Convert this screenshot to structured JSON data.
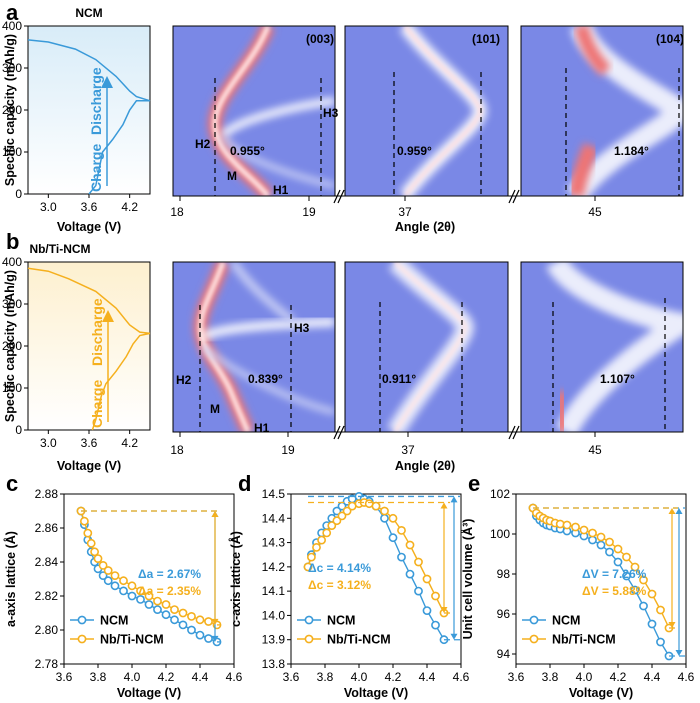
{
  "colors": {
    "ncm": "#3a9ad9",
    "nbti": "#f5b01e",
    "heat_bg": "#7a88e6",
    "heat_ridge": "#ffffff",
    "heat_hot": "#ee7474"
  },
  "panel_labels": [
    "a",
    "b",
    "c",
    "d",
    "e"
  ],
  "rows": [
    {
      "material": "NCM",
      "voltage_profile": {
        "ylabel": "Specific capacity (mAh/g)",
        "xlabel": "Voltage (V)",
        "yticks": [
          "0",
          "100",
          "200",
          "300",
          "400"
        ],
        "xticks": [
          "3.0",
          "3.6",
          "4.2"
        ],
        "charge_label": "Charge",
        "discharge_label": "Discharge",
        "color": "#3a9ad9"
      },
      "heatmap_xlabel": "Angle (2θ)",
      "heatmap_xticks": [
        "18",
        "19",
        "37",
        "45"
      ],
      "heatmaps": [
        {
          "reflection": "(003)",
          "shift": "0.955°",
          "phases": [
            "H1",
            "M",
            "H2",
            "H3"
          ]
        },
        {
          "reflection": "(101)",
          "shift": "0.959°"
        },
        {
          "reflection": "(104)",
          "shift": "1.184°"
        }
      ]
    },
    {
      "material": "Nb/Ti-NCM",
      "voltage_profile": {
        "ylabel": "Specific capacity (mAh/g)",
        "xlabel": "Voltage (V)",
        "yticks": [
          "0",
          "100",
          "200",
          "300",
          "400"
        ],
        "xticks": [
          "3.0",
          "3.6",
          "4.2"
        ],
        "charge_label": "Charge",
        "discharge_label": "Discharge",
        "color": "#f5b01e"
      },
      "heatmap_xlabel": "Angle (2θ)",
      "heatmap_xticks": [
        "18",
        "19",
        "37",
        "45"
      ],
      "heatmaps": [
        {
          "reflection": "",
          "shift": "0.839°",
          "phases": [
            "H1",
            "M",
            "H2",
            "H3"
          ]
        },
        {
          "reflection": "",
          "shift": "0.911°"
        },
        {
          "reflection": "",
          "shift": "1.107°"
        }
      ]
    }
  ],
  "chart_data": [
    {
      "type": "line",
      "panel": "a",
      "title": "NCM",
      "xlabel": "Voltage (V)",
      "ylabel": "Specific capacity (mAh/g)",
      "xlim": [
        2.7,
        4.5
      ],
      "ylim": [
        0,
        400
      ],
      "series": [
        {
          "values": [
            [
              3.6,
              0
            ],
            [
              3.7,
              20
            ],
            [
              3.75,
              60
            ],
            [
              3.8,
              100
            ],
            [
              3.95,
              130
            ],
            [
              4.1,
              165
            ],
            [
              4.2,
              200
            ],
            [
              4.3,
              222
            ],
            [
              4.5,
              222
            ]
          ]
        },
        {
          "values": [
            [
              4.5,
              222
            ],
            [
              4.3,
              232
            ],
            [
              4.2,
              245
            ],
            [
              4.0,
              280
            ],
            [
              3.7,
              320
            ],
            [
              3.4,
              345
            ],
            [
              3.0,
              362
            ],
            [
              2.7,
              367
            ]
          ]
        }
      ]
    },
    {
      "type": "line",
      "panel": "b",
      "title": "Nb/Ti-NCM",
      "xlabel": "Voltage (V)",
      "ylabel": "Specific capacity (mAh/g)",
      "xlim": [
        2.7,
        4.5
      ],
      "ylim": [
        0,
        400
      ],
      "series": [
        {
          "values": [
            [
              3.65,
              0
            ],
            [
              3.7,
              25
            ],
            [
              3.78,
              80
            ],
            [
              3.85,
              110
            ],
            [
              4.0,
              140
            ],
            [
              4.15,
              175
            ],
            [
              4.25,
              205
            ],
            [
              4.35,
              225
            ],
            [
              4.5,
              230
            ]
          ]
        },
        {
          "values": [
            [
              4.5,
              230
            ],
            [
              4.35,
              233
            ],
            [
              4.2,
              250
            ],
            [
              4.0,
              290
            ],
            [
              3.7,
              330
            ],
            [
              3.3,
              360
            ],
            [
              3.0,
              378
            ],
            [
              2.7,
              385
            ]
          ]
        }
      ]
    },
    {
      "type": "line",
      "panel": "c",
      "xlabel": "Voltage (V)",
      "ylabel": "a-axis lattice (Å)",
      "xlim": [
        3.6,
        4.6
      ],
      "ylim": [
        2.78,
        2.88
      ],
      "xticks": [
        "3.6",
        "3.8",
        "4.0",
        "4.2",
        "4.4",
        "4.6"
      ],
      "yticks": [
        "2.78",
        "2.80",
        "2.82",
        "2.84",
        "2.86",
        "2.88"
      ],
      "annotations": [
        "Δa = 2.67%",
        "Δa = 2.35%"
      ],
      "legend": "bottom-left",
      "series": [
        {
          "name": "NCM",
          "x": [
            3.7,
            3.72,
            3.74,
            3.76,
            3.78,
            3.8,
            3.83,
            3.86,
            3.9,
            3.95,
            4.0,
            4.05,
            4.1,
            4.15,
            4.2,
            4.25,
            4.3,
            4.35,
            4.4,
            4.45,
            4.5
          ],
          "values": [
            2.87,
            2.862,
            2.853,
            2.846,
            2.84,
            2.836,
            2.832,
            2.829,
            2.826,
            2.823,
            2.82,
            2.818,
            2.815,
            2.812,
            2.809,
            2.806,
            2.803,
            2.8,
            2.797,
            2.795,
            2.793
          ]
        },
        {
          "name": "Nb/Ti-NCM",
          "x": [
            3.7,
            3.72,
            3.74,
            3.76,
            3.78,
            3.8,
            3.83,
            3.86,
            3.9,
            3.95,
            4.0,
            4.05,
            4.1,
            4.15,
            4.2,
            4.25,
            4.3,
            4.35,
            4.4,
            4.45,
            4.5
          ],
          "values": [
            2.87,
            2.864,
            2.857,
            2.851,
            2.846,
            2.842,
            2.838,
            2.835,
            2.832,
            2.829,
            2.826,
            2.823,
            2.82,
            2.817,
            2.815,
            2.812,
            2.81,
            2.808,
            2.806,
            2.805,
            2.803
          ]
        }
      ]
    },
    {
      "type": "line",
      "panel": "d",
      "xlabel": "Voltage (V)",
      "ylabel": "c-axis lattice (Å)",
      "xlim": [
        3.6,
        4.6
      ],
      "ylim": [
        13.8,
        14.5
      ],
      "xticks": [
        "3.6",
        "3.8",
        "4.0",
        "4.2",
        "4.4",
        "4.6"
      ],
      "yticks": [
        "13.8",
        "13.9",
        "14.0",
        "14.1",
        "14.2",
        "14.3",
        "14.4",
        "14.5"
      ],
      "annotations": [
        "Δc = 4.14%",
        "Δc = 3.12%"
      ],
      "legend": "bottom-left",
      "series": [
        {
          "name": "NCM",
          "x": [
            3.7,
            3.72,
            3.75,
            3.78,
            3.81,
            3.84,
            3.87,
            3.9,
            3.93,
            3.96,
            4.0,
            4.03,
            4.06,
            4.1,
            4.15,
            4.2,
            4.25,
            4.3,
            4.35,
            4.4,
            4.45,
            4.5
          ],
          "values": [
            14.2,
            14.25,
            14.3,
            14.34,
            14.37,
            14.4,
            14.43,
            14.45,
            14.47,
            14.48,
            14.49,
            14.48,
            14.47,
            14.45,
            14.4,
            14.32,
            14.24,
            14.17,
            14.1,
            14.02,
            13.96,
            13.9
          ]
        },
        {
          "name": "Nb/Ti-NCM",
          "x": [
            3.7,
            3.72,
            3.75,
            3.78,
            3.81,
            3.84,
            3.87,
            3.9,
            3.93,
            3.96,
            4.0,
            4.03,
            4.06,
            4.1,
            4.15,
            4.2,
            4.25,
            4.3,
            4.35,
            4.4,
            4.45,
            4.5
          ],
          "values": [
            14.2,
            14.24,
            14.28,
            14.31,
            14.34,
            14.37,
            14.39,
            14.41,
            14.43,
            14.45,
            14.46,
            14.465,
            14.46,
            14.45,
            14.43,
            14.4,
            14.35,
            14.29,
            14.22,
            14.15,
            14.08,
            14.01
          ]
        }
      ]
    },
    {
      "type": "line",
      "panel": "e",
      "xlabel": "Voltage (V)",
      "ylabel": "Unit cell volume (Å³)",
      "xlim": [
        3.6,
        4.6
      ],
      "ylim": [
        93.5,
        102
      ],
      "xticks": [
        "3.6",
        "3.8",
        "4.0",
        "4.2",
        "4.4",
        "4.6"
      ],
      "yticks": [
        "94",
        "96",
        "98",
        "100",
        "102"
      ],
      "annotations": [
        "ΔV = 7.26%",
        "ΔV = 5.88%"
      ],
      "legend": "bottom-left",
      "series": [
        {
          "name": "NCM",
          "x": [
            3.7,
            3.72,
            3.74,
            3.76,
            3.78,
            3.8,
            3.83,
            3.86,
            3.9,
            3.95,
            4.0,
            4.05,
            4.1,
            4.15,
            4.2,
            4.25,
            4.3,
            4.35,
            4.4,
            4.45,
            4.5
          ],
          "values": [
            101.3,
            100.9,
            100.7,
            100.55,
            100.45,
            100.4,
            100.3,
            100.25,
            100.15,
            100.05,
            99.9,
            99.7,
            99.45,
            99.1,
            98.6,
            97.9,
            97.2,
            96.4,
            95.5,
            94.6,
            93.9
          ]
        },
        {
          "name": "Nb/Ti-NCM",
          "x": [
            3.7,
            3.72,
            3.74,
            3.76,
            3.78,
            3.8,
            3.83,
            3.86,
            3.9,
            3.95,
            4.0,
            4.05,
            4.1,
            4.15,
            4.2,
            4.25,
            4.3,
            4.35,
            4.4,
            4.45,
            4.5
          ],
          "values": [
            101.3,
            101.05,
            100.9,
            100.8,
            100.7,
            100.65,
            100.55,
            100.5,
            100.45,
            100.35,
            100.2,
            100.05,
            99.85,
            99.6,
            99.25,
            98.85,
            98.35,
            97.7,
            97.0,
            96.2,
            95.3
          ]
        }
      ]
    }
  ]
}
